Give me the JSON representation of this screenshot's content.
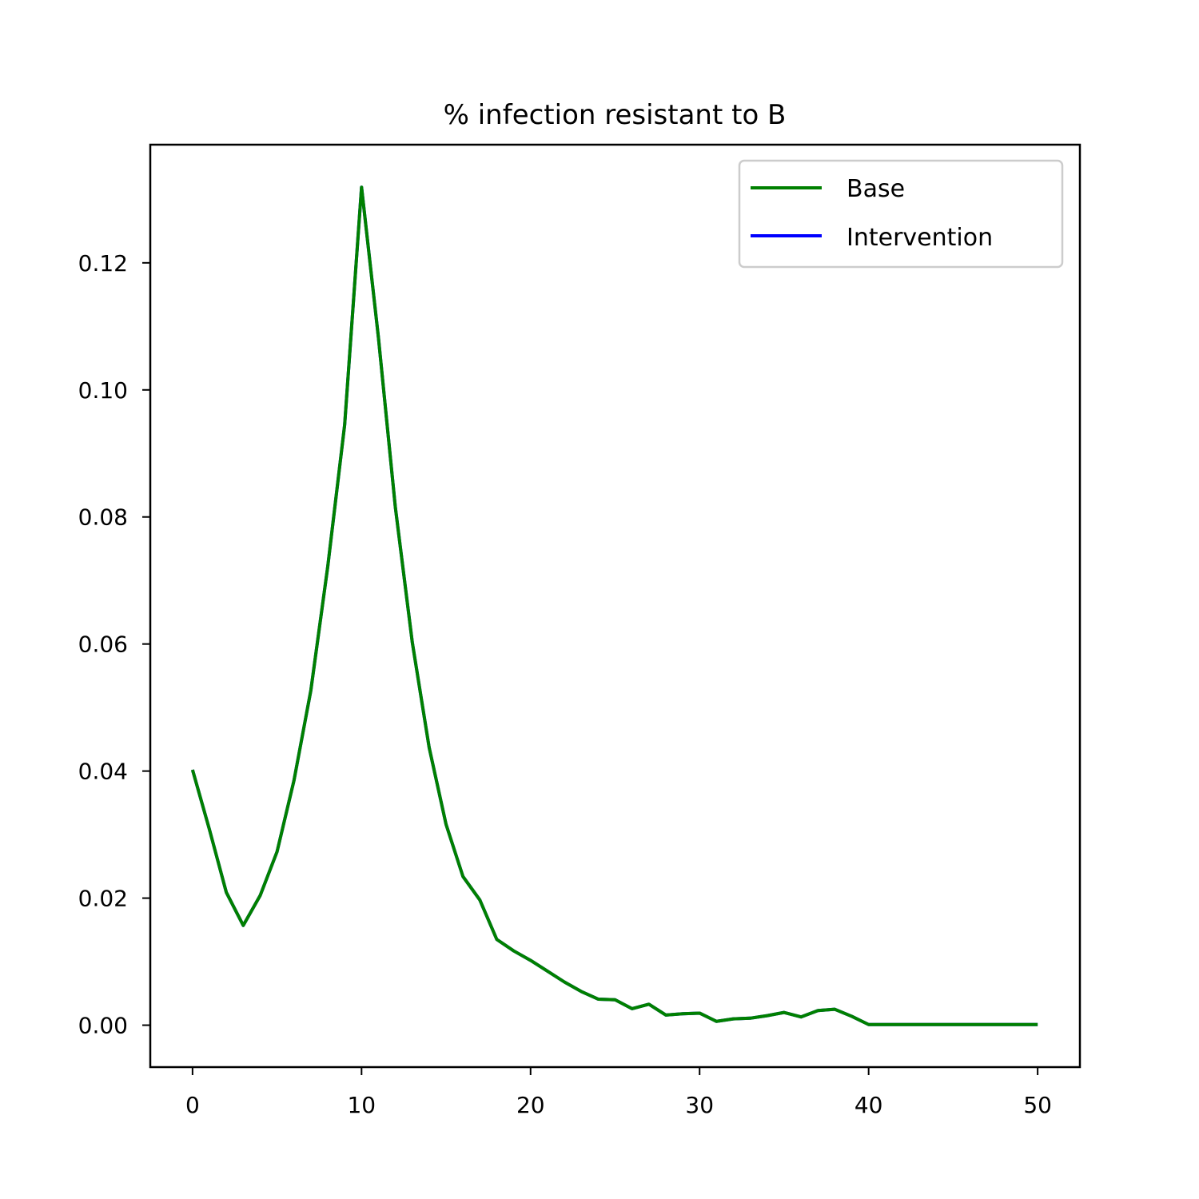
{
  "chart_data": {
    "type": "line",
    "title": "% infection resistant to B",
    "xlabel": "",
    "ylabel": "",
    "xlim": [
      -2.5,
      52.5
    ],
    "ylim": [
      -0.0066,
      0.1386
    ],
    "xticks": [
      0,
      10,
      20,
      30,
      40,
      50
    ],
    "xtick_labels": [
      "0",
      "10",
      "20",
      "30",
      "40",
      "50"
    ],
    "yticks": [
      0.0,
      0.02,
      0.04,
      0.06,
      0.08,
      0.1,
      0.12
    ],
    "ytick_labels": [
      "0.00",
      "0.02",
      "0.04",
      "0.06",
      "0.08",
      "0.10",
      "0.12"
    ],
    "grid": false,
    "legend_position": "top-right",
    "x": [
      0,
      1,
      2,
      3,
      4,
      5,
      6,
      7,
      8,
      9,
      10,
      11,
      12,
      13,
      14,
      15,
      16,
      17,
      18,
      19,
      20,
      21,
      22,
      23,
      24,
      25,
      26,
      27,
      28,
      29,
      30,
      31,
      32,
      33,
      34,
      35,
      36,
      37,
      38,
      39,
      40,
      41,
      42,
      43,
      44,
      45,
      46,
      47,
      48,
      49,
      50
    ],
    "series": [
      {
        "name": "Intervention",
        "color": "#0000ff",
        "values": [
          0.0402,
          0.0308,
          0.0209,
          0.0157,
          0.0204,
          0.0273,
          0.0385,
          0.0527,
          0.0722,
          0.0945,
          0.1319,
          0.1082,
          0.0815,
          0.0603,
          0.0437,
          0.0316,
          0.0234,
          0.0197,
          0.0135,
          0.0117,
          0.0102,
          0.0085,
          0.0068,
          0.0053,
          0.0041,
          0.004,
          0.0026,
          0.0033,
          0.0016,
          0.0018,
          0.0019,
          0.0006,
          0.001,
          0.0011,
          0.0015,
          0.002,
          0.0013,
          0.0023,
          0.0025,
          0.0014,
          0.0001,
          0.0001,
          0.0001,
          0.0001,
          0.0001,
          0.0001,
          0.0001,
          0.0001,
          0.0001,
          0.0001,
          0.0001
        ]
      },
      {
        "name": "Base",
        "color": "#008000",
        "values": [
          0.0402,
          0.0308,
          0.0209,
          0.0157,
          0.0204,
          0.0273,
          0.0385,
          0.0527,
          0.0722,
          0.0945,
          0.1319,
          0.1082,
          0.0815,
          0.0603,
          0.0437,
          0.0316,
          0.0234,
          0.0197,
          0.0135,
          0.0117,
          0.0102,
          0.0085,
          0.0068,
          0.0053,
          0.0041,
          0.004,
          0.0026,
          0.0033,
          0.0016,
          0.0018,
          0.0019,
          0.0006,
          0.001,
          0.0011,
          0.0015,
          0.002,
          0.0013,
          0.0023,
          0.0025,
          0.0014,
          0.0001,
          0.0001,
          0.0001,
          0.0001,
          0.0001,
          0.0001,
          0.0001,
          0.0001,
          0.0001,
          0.0001,
          0.0001
        ]
      }
    ],
    "legend": [
      {
        "name": "Base",
        "color": "#008000"
      },
      {
        "name": "Intervention",
        "color": "#0000ff"
      }
    ]
  }
}
